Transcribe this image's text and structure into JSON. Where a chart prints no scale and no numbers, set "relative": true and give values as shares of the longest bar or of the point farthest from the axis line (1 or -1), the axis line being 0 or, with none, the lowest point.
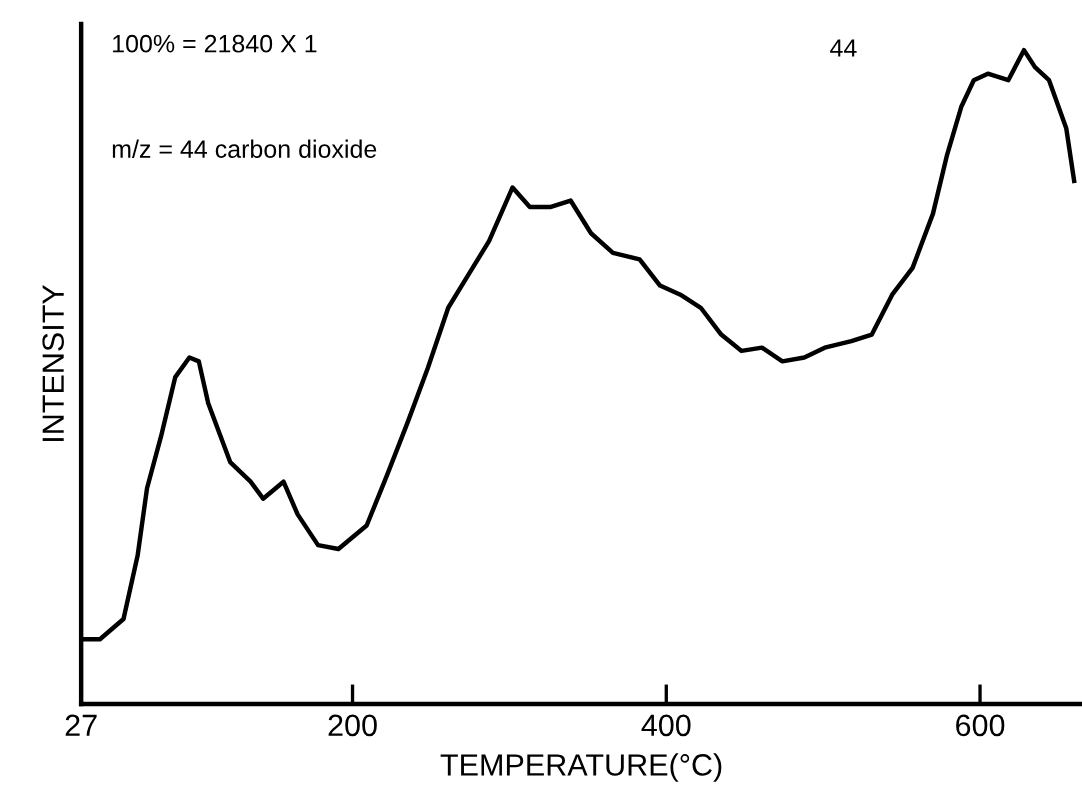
{
  "chart_data": {
    "type": "line",
    "relative": true,
    "xlabel": "TEMPERATURE(°C)",
    "ylabel": "INTENSITY",
    "annotations": [
      "100% = 21840 X 1",
      "m/z = 44 carbon dioxide"
    ],
    "xlim": [
      27,
      665
    ],
    "xticks": [
      27,
      200,
      400,
      600
    ],
    "grid": false,
    "legend": false,
    "marker": "none",
    "line_style": "solid",
    "x": [
      28,
      39,
      54,
      63,
      69,
      78,
      87,
      96,
      102,
      108,
      122,
      135,
      143,
      156,
      165,
      178,
      191,
      209,
      222,
      235,
      248,
      261,
      274,
      287,
      302,
      313,
      326,
      339,
      352,
      366,
      383,
      396,
      409,
      422,
      435,
      448,
      461,
      474,
      488,
      501,
      518,
      531,
      544,
      557,
      570,
      579,
      588,
      596,
      605,
      618,
      628,
      635,
      644,
      655,
      660
    ],
    "series": [
      {
        "name": "44",
        "color": "#000000",
        "values": [
          0.099,
          0.099,
          0.13,
          0.227,
          0.33,
          0.41,
          0.5,
          0.53,
          0.524,
          0.46,
          0.37,
          0.34,
          0.314,
          0.34,
          0.29,
          0.243,
          0.237,
          0.273,
          0.35,
          0.43,
          0.514,
          0.606,
          0.657,
          0.708,
          0.79,
          0.76,
          0.76,
          0.77,
          0.72,
          0.69,
          0.68,
          0.64,
          0.626,
          0.606,
          0.565,
          0.54,
          0.545,
          0.524,
          0.53,
          0.545,
          0.555,
          0.565,
          0.626,
          0.667,
          0.75,
          0.84,
          0.913,
          0.954,
          0.964,
          0.954,
          1.0,
          0.974,
          0.954,
          0.88,
          0.8
        ]
      }
    ]
  }
}
